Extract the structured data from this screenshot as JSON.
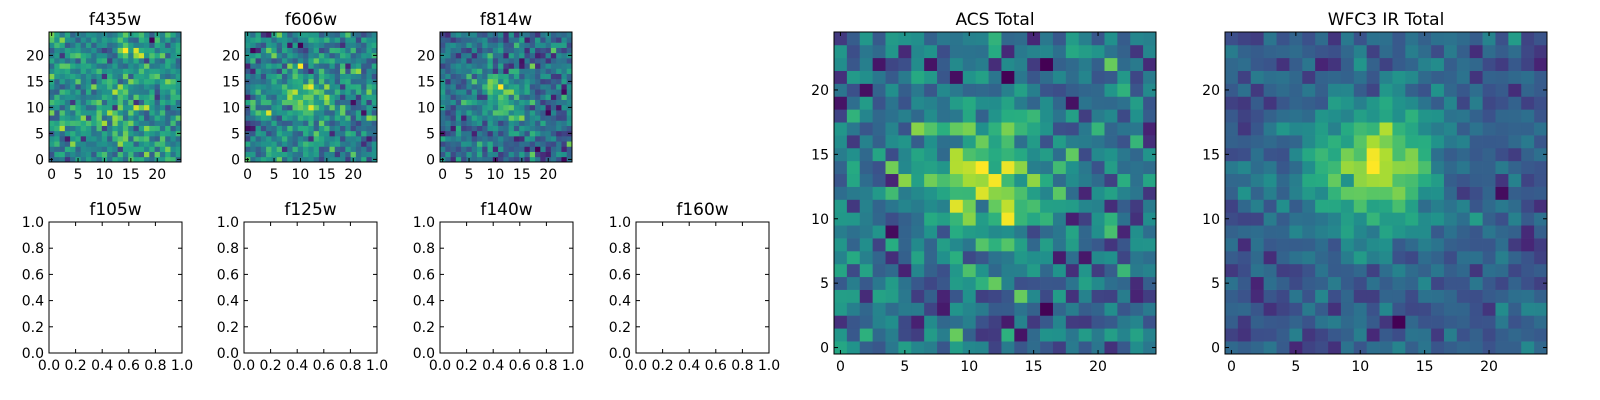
{
  "figure": {
    "background": "#ffffff",
    "colormap": "viridis"
  },
  "chart_data": [
    {
      "type": "heatmap",
      "id": "f435w",
      "title": "f435w",
      "grid_size": 25,
      "xlim": [
        -0.5,
        24.5
      ],
      "ylim": [
        -0.5,
        24.5
      ],
      "xticks": [
        0,
        5,
        10,
        15,
        20
      ],
      "yticks": [
        0,
        5,
        10,
        15,
        20
      ],
      "noise_level": 1.0,
      "signal_peak": 0.15,
      "signal_center": [
        12,
        12
      ],
      "signal_width": 3.5,
      "seed": 11
    },
    {
      "type": "heatmap",
      "id": "f606w",
      "title": "f606w",
      "grid_size": 25,
      "xlim": [
        -0.5,
        24.5
      ],
      "ylim": [
        -0.5,
        24.5
      ],
      "xticks": [
        0,
        5,
        10,
        15,
        20
      ],
      "yticks": [
        0,
        5,
        10,
        15,
        20
      ],
      "noise_level": 1.0,
      "signal_peak": 0.5,
      "signal_center": [
        11,
        12
      ],
      "signal_width": 3.5,
      "seed": 23
    },
    {
      "type": "heatmap",
      "id": "f814w",
      "title": "f814w",
      "grid_size": 25,
      "xlim": [
        -0.5,
        24.5
      ],
      "ylim": [
        -0.5,
        24.5
      ],
      "xticks": [
        0,
        5,
        10,
        15,
        20
      ],
      "yticks": [
        0,
        5,
        10,
        15,
        20
      ],
      "noise_level": 1.0,
      "signal_peak": 0.7,
      "signal_center": [
        11,
        12
      ],
      "signal_width": 3.5,
      "seed": 37
    },
    {
      "type": "empty",
      "id": "f105w",
      "title": "f105w",
      "xlim": [
        0.0,
        1.0
      ],
      "ylim": [
        0.0,
        1.0
      ],
      "xticks": [
        "0.0",
        "0.2",
        "0.4",
        "0.6",
        "0.8",
        "1.0"
      ],
      "yticks": [
        "0.0",
        "0.2",
        "0.4",
        "0.6",
        "0.8",
        "1.0"
      ]
    },
    {
      "type": "empty",
      "id": "f125w",
      "title": "f125w",
      "xlim": [
        0.0,
        1.0
      ],
      "ylim": [
        0.0,
        1.0
      ],
      "xticks": [
        "0.0",
        "0.2",
        "0.4",
        "0.6",
        "0.8",
        "1.0"
      ],
      "yticks": [
        "0.0",
        "0.2",
        "0.4",
        "0.6",
        "0.8",
        "1.0"
      ]
    },
    {
      "type": "empty",
      "id": "f140w",
      "title": "f140w",
      "xlim": [
        0.0,
        1.0
      ],
      "ylim": [
        0.0,
        1.0
      ],
      "xticks": [
        "0.0",
        "0.2",
        "0.4",
        "0.6",
        "0.8",
        "1.0"
      ],
      "yticks": [
        "0.0",
        "0.2",
        "0.4",
        "0.6",
        "0.8",
        "1.0"
      ]
    },
    {
      "type": "empty",
      "id": "f160w",
      "title": "f160w",
      "xlim": [
        0.0,
        1.0
      ],
      "ylim": [
        0.0,
        1.0
      ],
      "xticks": [
        "0.0",
        "0.2",
        "0.4",
        "0.6",
        "0.8",
        "1.0"
      ],
      "yticks": [
        "0.0",
        "0.2",
        "0.4",
        "0.6",
        "0.8",
        "1.0"
      ]
    },
    {
      "type": "heatmap",
      "id": "acs-total",
      "title": "ACS Total",
      "grid_size": 25,
      "xlim": [
        -0.5,
        24.5
      ],
      "ylim": [
        -0.5,
        24.5
      ],
      "xticks": [
        0,
        5,
        10,
        15,
        20
      ],
      "yticks": [
        0,
        5,
        10,
        15,
        20
      ],
      "noise_level": 0.75,
      "signal_peak": 0.85,
      "signal_center": [
        11,
        13
      ],
      "signal_width": 3.5,
      "seed": 51
    },
    {
      "type": "heatmap",
      "id": "wfc3-ir-total",
      "title": "WFC3 IR Total",
      "grid_size": 25,
      "xlim": [
        -0.5,
        24.5
      ],
      "ylim": [
        -0.5,
        24.5
      ],
      "xticks": [
        0,
        5,
        10,
        15,
        20
      ],
      "yticks": [
        0,
        5,
        10,
        15,
        20
      ],
      "noise_level": 0.55,
      "signal_peak": 1.3,
      "signal_center": [
        11,
        14
      ],
      "signal_width": 3.5,
      "seed": 73
    }
  ]
}
